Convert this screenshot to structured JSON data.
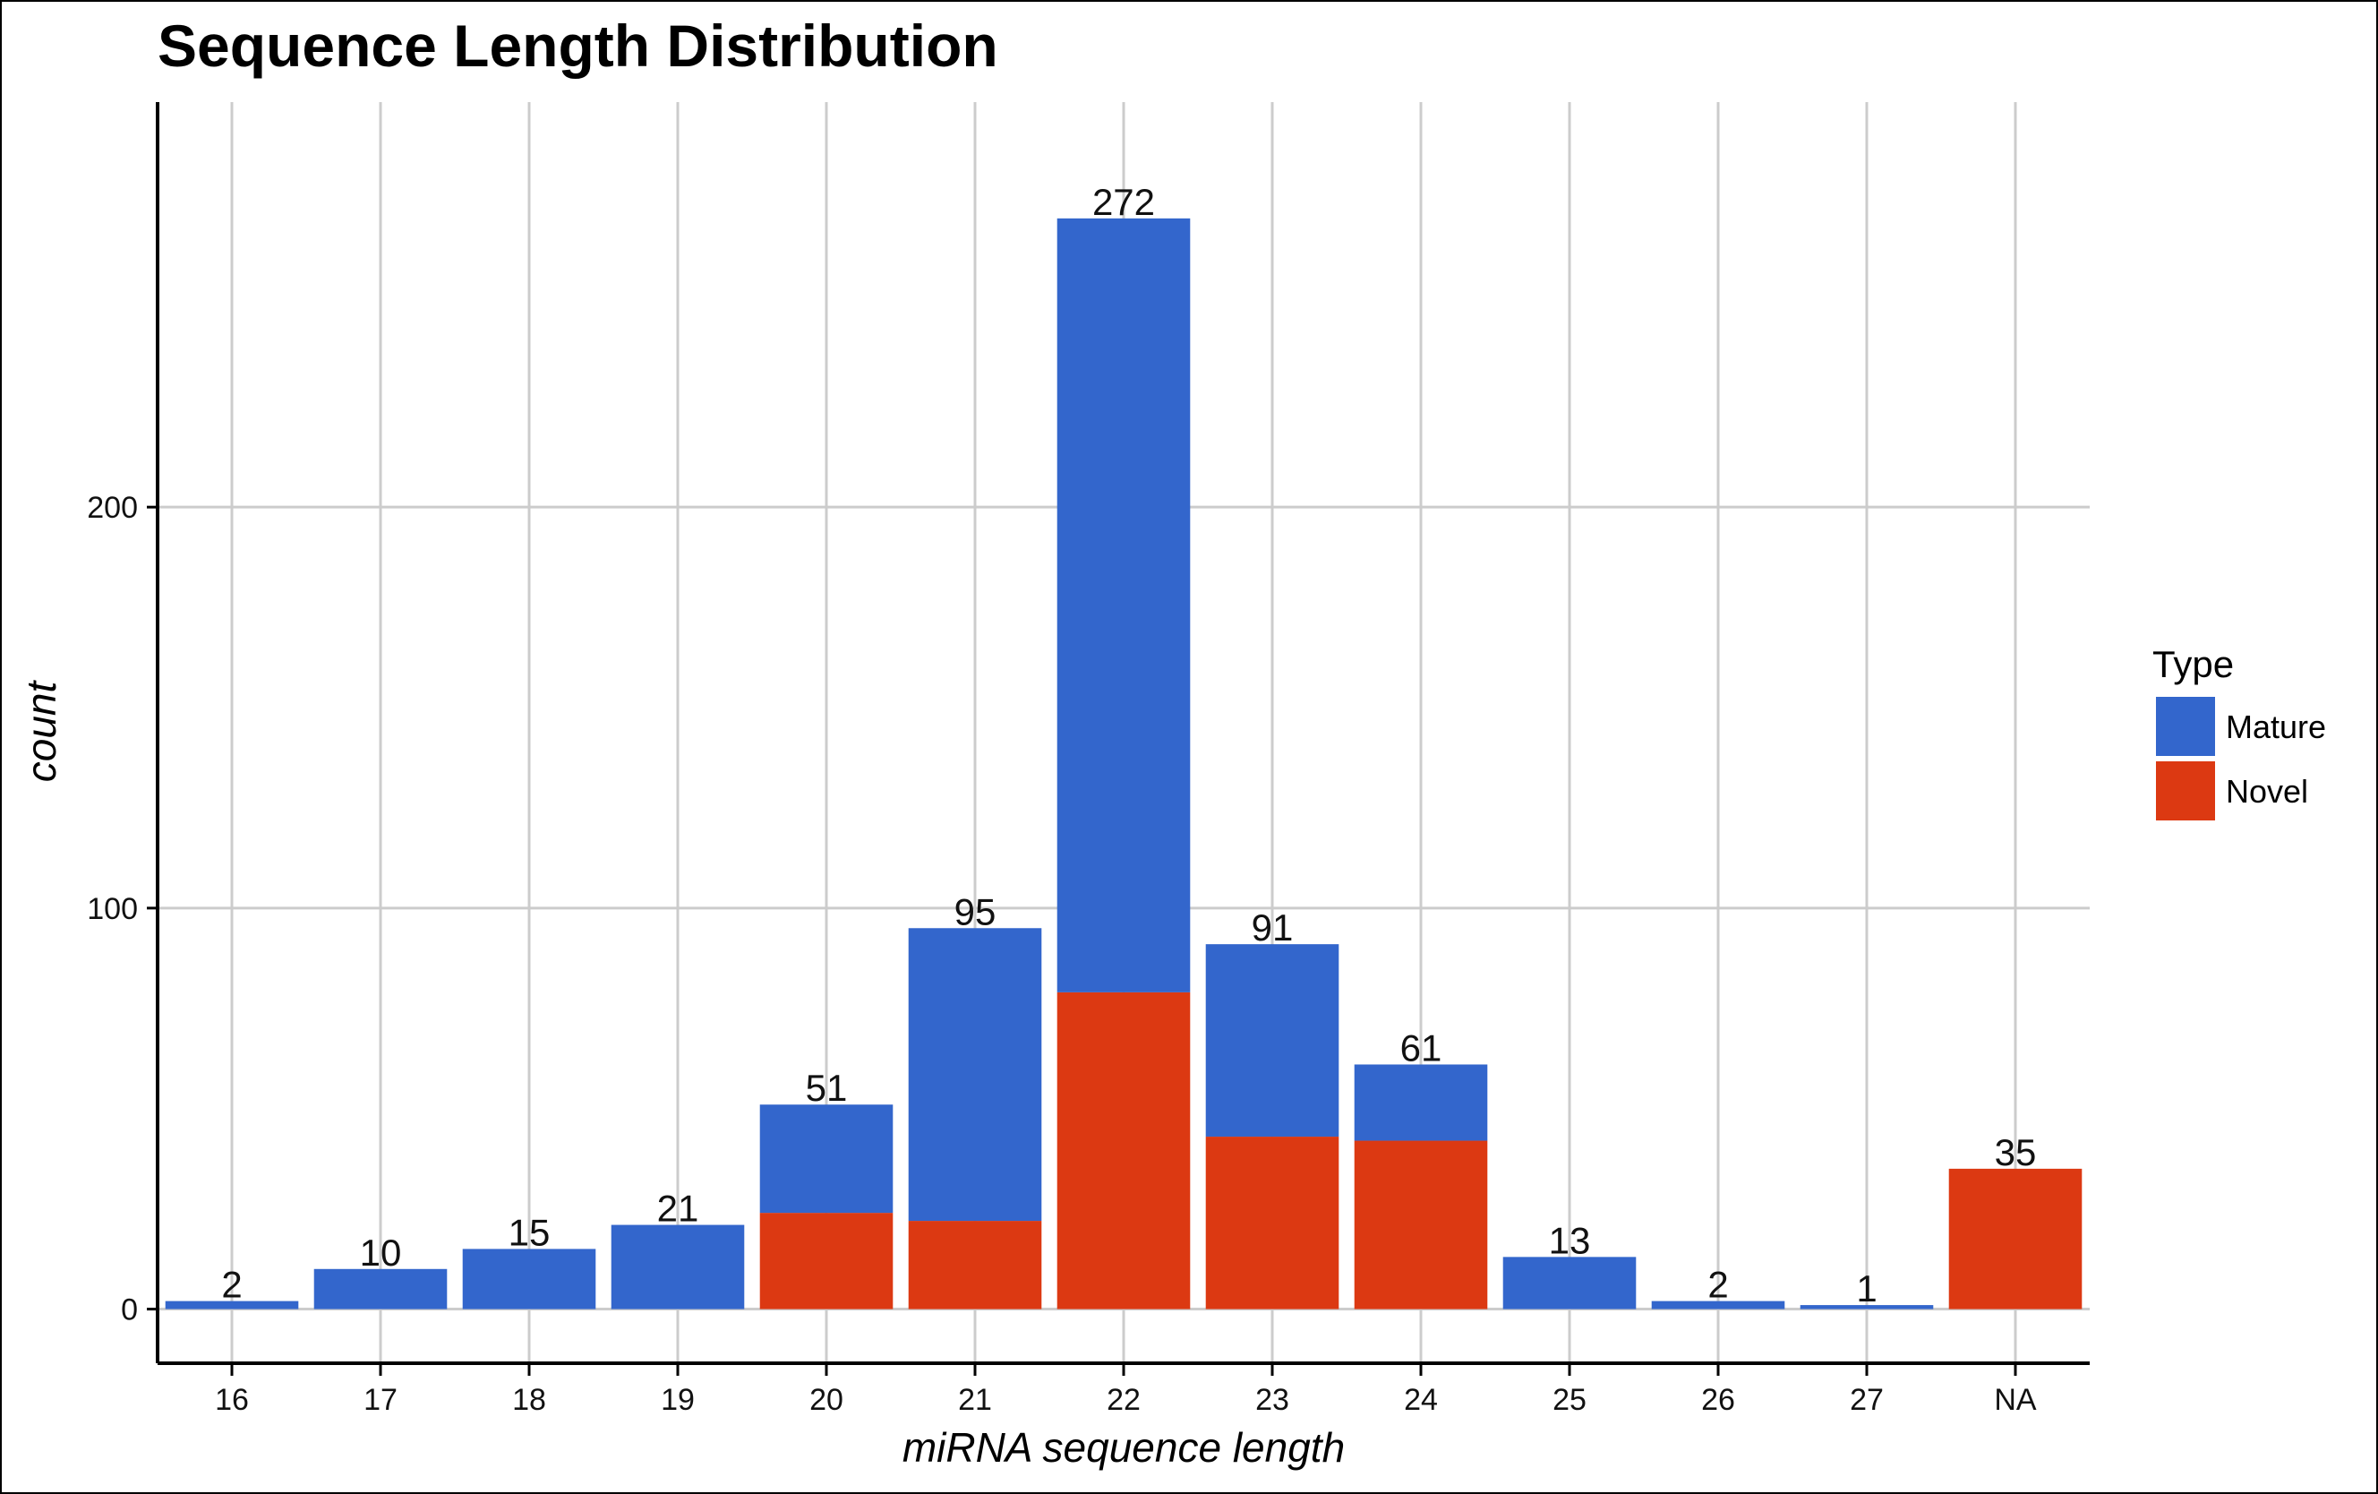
{
  "chart_data": {
    "type": "bar",
    "stacked": true,
    "title": "Sequence Length Distribution",
    "xlabel": "miRNA sequence length",
    "ylabel": "count",
    "categories": [
      "16",
      "17",
      "18",
      "19",
      "20",
      "21",
      "22",
      "23",
      "24",
      "25",
      "26",
      "27",
      "NA"
    ],
    "series": [
      {
        "name": "Mature",
        "color": "#3366cc",
        "values": [
          2,
          10,
          15,
          21,
          27,
          73,
          193,
          48,
          19,
          13,
          2,
          1,
          0
        ]
      },
      {
        "name": "Novel",
        "color": "#dc3912",
        "values": [
          0,
          0,
          0,
          0,
          24,
          22,
          79,
          43,
          42,
          0,
          0,
          0,
          35
        ]
      }
    ],
    "totals": [
      2,
      10,
      15,
      21,
      51,
      95,
      272,
      91,
      61,
      13,
      2,
      1,
      35
    ],
    "yticks": [
      0,
      100,
      200
    ],
    "ylim": [
      -13.5,
      301
    ],
    "grid": true,
    "legend": {
      "title": "Type",
      "position": "right"
    }
  }
}
